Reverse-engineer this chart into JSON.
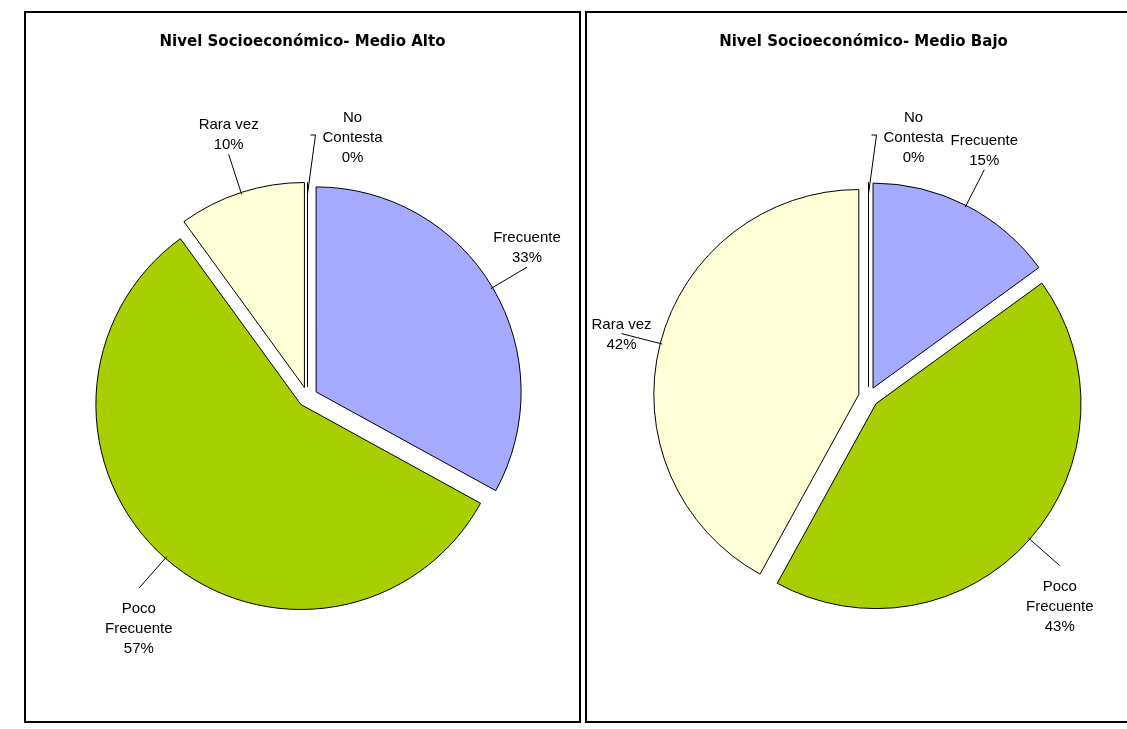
{
  "chart_data": [
    {
      "type": "pie",
      "title": "Nivel Socioeconómico- Medio Alto",
      "categories": [
        "Frecuente",
        "Poco Frecuente",
        "Rara vez",
        "No Contesta"
      ],
      "values": [
        33,
        57,
        10,
        0
      ],
      "value_labels": [
        "33%",
        "57%",
        "10%",
        "0%"
      ],
      "colors": [
        "#a6aaff",
        "#a8d000",
        "#ffffd8",
        "#f4f4f4"
      ],
      "legend": false
    },
    {
      "type": "pie",
      "title": "Nivel Socioeconómico- Medio Bajo",
      "categories": [
        "Frecuente",
        "Poco Frecuente",
        "Rara vez",
        "No Contesta"
      ],
      "values": [
        15,
        43,
        42,
        0
      ],
      "value_labels": [
        "15%",
        "43%",
        "42%",
        "0%"
      ],
      "colors": [
        "#a6aaff",
        "#a8d000",
        "#ffffd8",
        "#f4f4f4"
      ],
      "legend": false
    }
  ]
}
